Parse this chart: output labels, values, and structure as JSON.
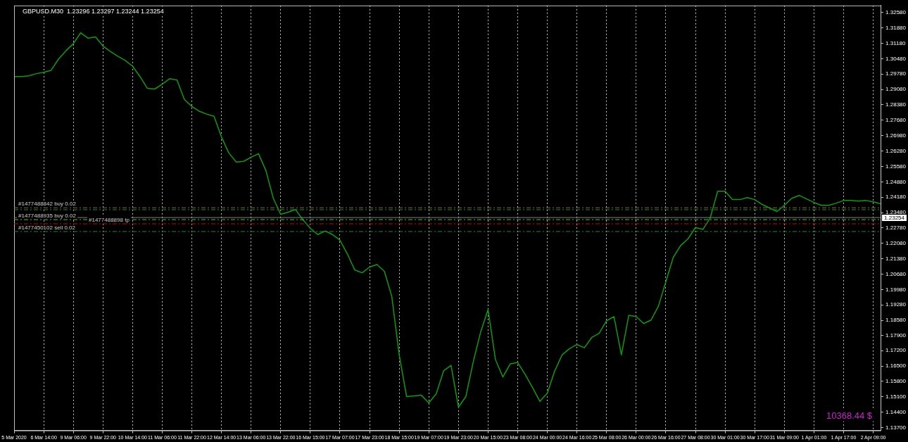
{
  "chart_data": {
    "type": "line",
    "title": "GBPUSD.M30  1.23296 1.23297 1.23244 1.23254",
    "categories": [
      "5 Mar 2020",
      null,
      null,
      null,
      "6 Mar 14:00",
      null,
      null,
      null,
      "9 Mar 06:00",
      null,
      null,
      null,
      "9 Mar 22:00",
      null,
      null,
      null,
      "10 Mar 14:00",
      null,
      null,
      null,
      "11 Mar 06:00",
      null,
      null,
      null,
      "11 Mar 22:00",
      null,
      null,
      null,
      "12 Mar 14:00",
      null,
      null,
      null,
      "13 Mar 06:00",
      null,
      null,
      null,
      "13 Mar 22:00",
      null,
      null,
      null,
      "16 Mar 15:00",
      null,
      null,
      null,
      "17 Mar 07:00",
      null,
      null,
      null,
      "17 Mar 23:00",
      null,
      null,
      null,
      "18 Mar 15:00",
      null,
      null,
      null,
      "19 Mar 07:00",
      null,
      null,
      null,
      "19 Mar 23:00",
      null,
      null,
      null,
      "20 Mar 15:00",
      null,
      null,
      null,
      "23 Mar 08:00",
      null,
      null,
      null,
      "24 Mar 00:00",
      null,
      null,
      null,
      "24 Mar 16:00",
      null,
      null,
      null,
      "25 Mar 08:00",
      null,
      null,
      null,
      "26 Mar 00:00",
      null,
      null,
      null,
      "26 Mar 16:00",
      null,
      null,
      null,
      "27 Mar 08:00",
      null,
      null,
      null,
      "30 Mar 01:00",
      null,
      null,
      null,
      "30 Mar 17:00",
      null,
      null,
      null,
      "31 Mar 09:00",
      null,
      null,
      null,
      "1 Apr 01:00",
      null,
      null,
      null,
      "1 Apr 17:00",
      null,
      null,
      null,
      "2 Apr 09:00",
      null
    ],
    "series": [
      {
        "color": "#0f9a0f",
        "values": [
          1.2967,
          1.2967,
          1.297,
          1.298,
          1.2986,
          1.2995,
          1.3046,
          1.3084,
          1.3116,
          1.3166,
          1.3141,
          1.3147,
          1.3106,
          1.3081,
          1.3059,
          1.304,
          1.3014,
          1.2967,
          1.2913,
          1.291,
          1.2932,
          1.2957,
          1.2951,
          1.2862,
          1.2831,
          1.2809,
          1.2796,
          1.2786,
          1.2692,
          1.2619,
          1.2578,
          1.2581,
          1.26,
          1.2616,
          1.254,
          1.2413,
          1.234,
          1.235,
          1.2362,
          1.2315,
          1.2277,
          1.2248,
          1.2264,
          1.2248,
          1.2223,
          1.216,
          1.2087,
          1.2074,
          1.21,
          1.2112,
          1.2081,
          1.1967,
          1.1701,
          1.1511,
          1.1514,
          1.1517,
          1.1482,
          1.1524,
          1.1628,
          1.1653,
          1.1463,
          1.1511,
          1.1669,
          1.1805,
          1.1907,
          1.1679,
          1.16,
          1.166,
          1.1666,
          1.1612,
          1.1552,
          1.1489,
          1.1527,
          1.1628,
          1.1701,
          1.1729,
          1.1748,
          1.1733,
          1.178,
          1.1799,
          1.1856,
          1.1875,
          1.1701,
          1.1881,
          1.1875,
          1.1843,
          1.1859,
          1.1922,
          1.2033,
          1.2144,
          1.2198,
          1.2229,
          1.228,
          1.2271,
          1.2324,
          1.2445,
          1.2445,
          1.2407,
          1.2407,
          1.2416,
          1.2407,
          1.2385,
          1.2369,
          1.2353,
          1.2381,
          1.2413,
          1.2426,
          1.241,
          1.2394,
          1.2381,
          1.2381,
          1.2391,
          1.2403,
          1.2403,
          1.24,
          1.2403,
          1.2397,
          1.2388
        ]
      }
    ],
    "ylim": [
      1.1357,
      1.329
    ],
    "yticks": [
      {
        "value": 1.3258,
        "label": "1.32580"
      },
      {
        "value": 1.3188,
        "label": "1.31880"
      },
      {
        "value": 1.3118,
        "label": "1.31180"
      },
      {
        "value": 1.3048,
        "label": "1.30480"
      },
      {
        "value": 1.2978,
        "label": "1.29780"
      },
      {
        "value": 1.2908,
        "label": "1.29080"
      },
      {
        "value": 1.2838,
        "label": "1.28380"
      },
      {
        "value": 1.2768,
        "label": "1.27680"
      },
      {
        "value": 1.2698,
        "label": "1.26980"
      },
      {
        "value": 1.2628,
        "label": "1.26280"
      },
      {
        "value": 1.2558,
        "label": "1.25580"
      },
      {
        "value": 1.2488,
        "label": "1.24880"
      },
      {
        "value": 1.2418,
        "label": "1.24180"
      },
      {
        "value": 1.2348,
        "label": "1.23480"
      },
      {
        "value": 1.2278,
        "label": "1.22780"
      },
      {
        "value": 1.2208,
        "label": "1.22080"
      },
      {
        "value": 1.2138,
        "label": "1.21380"
      },
      {
        "value": 1.2068,
        "label": "1.20680"
      },
      {
        "value": 1.1998,
        "label": "1.19980"
      },
      {
        "value": 1.1928,
        "label": "1.19280"
      },
      {
        "value": 1.1858,
        "label": "1.18580"
      },
      {
        "value": 1.179,
        "label": "1.17900"
      },
      {
        "value": 1.172,
        "label": "1.17200"
      },
      {
        "value": 1.165,
        "label": "1.16500"
      },
      {
        "value": 1.158,
        "label": "1.15800"
      },
      {
        "value": 1.151,
        "label": "1.15100"
      },
      {
        "value": 1.144,
        "label": "1.14400"
      },
      {
        "value": 1.137,
        "label": "1.13700"
      }
    ],
    "ref_lines": [
      {
        "axis": "y",
        "value": 1.237,
        "label": "#1477488842 buy 0.02",
        "color": "#8b6a2b",
        "line_style": "dashed"
      },
      {
        "axis": "y",
        "value": 1.2361,
        "color": "#228b22",
        "line_style": "dashed"
      },
      {
        "axis": "y",
        "value": 1.23254,
        "label": "1.23254",
        "color": "#808080",
        "line_style": "solid"
      },
      {
        "axis": "y",
        "value": 1.2316,
        "label": "#1477488935 buy 0.02",
        "color": "#32cd32",
        "line_style": "dashed"
      },
      {
        "axis": "y",
        "value": 1.2297,
        "label": "#1477488898 tp",
        "color": "#cc0000",
        "line_style": "dashed"
      },
      {
        "axis": "y",
        "value": 1.2262,
        "label": "#1477450102 sell 0.02",
        "color": "#228b22",
        "line_style": "dashed"
      }
    ],
    "annotations": [
      "10368.44 $"
    ],
    "grid": "x",
    "legend": false,
    "marker": "none",
    "line_style": "solid"
  }
}
